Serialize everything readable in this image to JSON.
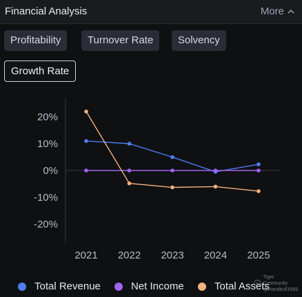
{
  "header": {
    "title": "Financial Analysis",
    "more_label": "More"
  },
  "tabs": [
    {
      "label": "Profitability",
      "active": false
    },
    {
      "label": "Turnover Rate",
      "active": false
    },
    {
      "label": "Solvency",
      "active": false
    },
    {
      "label": "Growth Rate",
      "active": true
    }
  ],
  "chart_data": {
    "type": "line",
    "x": [
      "2021",
      "2022",
      "2023",
      "2024",
      "2025"
    ],
    "series": [
      {
        "name": "Total Revenue",
        "color": "#4f7df7",
        "values": [
          11,
          10,
          5,
          -0.5,
          2.3
        ]
      },
      {
        "name": "Net Income",
        "color": "#a064f2",
        "values": [
          0,
          0,
          0,
          0,
          0
        ]
      },
      {
        "name": "Total Assets",
        "color": "#f2b27e",
        "values": [
          22,
          -4.8,
          -6.3,
          -6,
          -7.7
        ]
      }
    ],
    "yticks": [
      20,
      10,
      0,
      -10,
      -20
    ],
    "ytick_labels": [
      "20%",
      "10%",
      "0%",
      "-10%",
      "-20%"
    ],
    "ylim": [
      -27,
      27
    ],
    "legend_position": "bottom"
  },
  "watermark": {
    "line1": "Tiger Community",
    "line2": "@Handbull1669"
  }
}
